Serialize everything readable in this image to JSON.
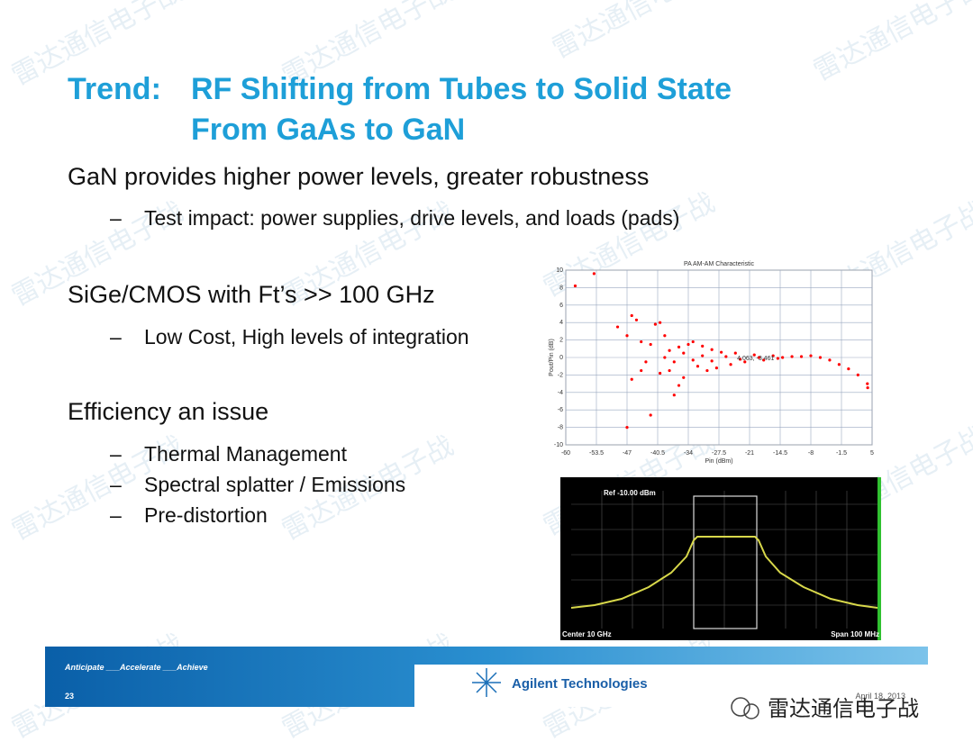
{
  "title": [
    "Trend:",
    "RF Shifting from Tubes to Solid State",
    "From GaAs to GaN"
  ],
  "bullet_marker": "–",
  "bullets": [
    {
      "text": "GaN provides higher power levels, greater robustness",
      "sub": [
        "Test impact: power supplies, drive levels, and loads (pads)"
      ]
    },
    {
      "text": "SiGe/CMOS with Ft’s >> 100 GHz",
      "sub": [
        "Low Cost, High levels of integration"
      ]
    },
    {
      "text": "Efficiency an issue",
      "sub": [
        "Thermal Management",
        "Spectral splatter / Emissions",
        "Pre-distortion"
      ]
    }
  ],
  "chart_data": {
    "type": "scatter",
    "title": "PA AM-AM Characteristic",
    "x_label": "Pin (dBm)",
    "y_label": "Pout/Pin (dB)",
    "color": "#ff0000",
    "grid": true,
    "annotation": "4.063, -3.461",
    "xlim": [
      -60,
      5
    ],
    "xticks": [
      -60,
      -53.5,
      -47,
      -40.5,
      -34,
      -27.5,
      -21,
      -14.5,
      -8,
      -1.5,
      5
    ],
    "ylim": [
      -10,
      10
    ],
    "yticks": [
      -10,
      -8,
      -6,
      -4,
      -2,
      0,
      2,
      4,
      6,
      8,
      10
    ],
    "x": [
      -58,
      -54,
      -49,
      -47,
      -46,
      -45,
      -44,
      -43,
      -42,
      -41,
      -40,
      -39,
      -47,
      -42,
      -46,
      -44,
      -40,
      -38,
      -37,
      -36,
      -35,
      -38,
      -36,
      -34,
      -33,
      -31,
      -30,
      -32,
      -29,
      -28,
      -27,
      -25,
      -24,
      -22,
      -20,
      -18,
      -16,
      -14,
      -12,
      -10,
      -8,
      -6,
      -4,
      -2,
      0,
      2,
      4,
      4.063,
      -39,
      -37,
      -35,
      -33,
      -31,
      -29,
      -26,
      -23,
      -19,
      -15
    ],
    "y": [
      8.2,
      9.6,
      3.5,
      2.5,
      4.8,
      4.3,
      1.8,
      -0.5,
      1.5,
      3.8,
      4,
      2.5,
      -8,
      -6.6,
      -2.5,
      -1.5,
      -1.8,
      -1.5,
      -4.3,
      -3.2,
      -2.3,
      0.8,
      1.2,
      1.5,
      1.8,
      1.3,
      -1.5,
      -1,
      0.9,
      -1.2,
      0.6,
      -0.8,
      0.5,
      -0.5,
      0.3,
      -0.3,
      0.2,
      0,
      0.1,
      0.1,
      0.2,
      0,
      -0.3,
      -0.8,
      -1.3,
      -2,
      -3,
      -3.461,
      0,
      -0.5,
      0.5,
      -0.3,
      0.2,
      -0.4,
      0.1,
      -0.2,
      0,
      -0.1
    ]
  },
  "spectrum": {
    "ref": "Ref -10.00 dBm",
    "center": "Center 10 GHz",
    "span": "Span 100 MHz"
  },
  "footer": {
    "tagline": "Anticipate ___Accelerate ___Achieve",
    "page": "23",
    "company": "Agilent Technologies",
    "date": "April 18, 2013"
  },
  "watermark": "雷达通信电子战"
}
